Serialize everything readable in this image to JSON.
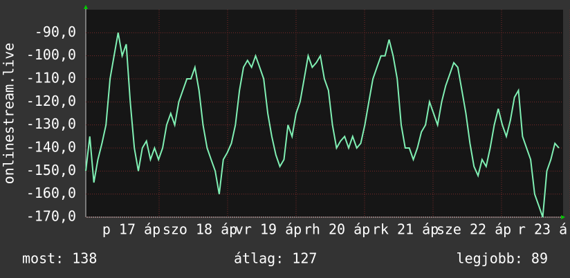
{
  "chart_data": {
    "type": "line",
    "y_label": "onlinestream.live",
    "ylim": [
      -170,
      -80
    ],
    "yticks": [
      {
        "value": -170,
        "label": "-170,0"
      },
      {
        "value": -160,
        "label": "-160,0"
      },
      {
        "value": -150,
        "label": "-150,0"
      },
      {
        "value": -140,
        "label": "-140,0"
      },
      {
        "value": -130,
        "label": "-130,0"
      },
      {
        "value": -120,
        "label": "-120,0"
      },
      {
        "value": -110,
        "label": "-110,0"
      },
      {
        "value": -100,
        "label": "-100,0"
      },
      {
        "value": -90,
        "label": "-90,0"
      }
    ],
    "x_labels": [
      "p 17 áp",
      "szo 18 áp",
      "vr 19 áp",
      "rh 20 áp",
      "rk 21 áp",
      "sze 22 áp",
      "r 23 á"
    ],
    "grid": true,
    "series": [
      {
        "color": "#80f0b4",
        "values": [
          -150,
          -135,
          -155,
          -145,
          -138,
          -130,
          -110,
          -100,
          -90,
          -100,
          -95,
          -120,
          -140,
          -150,
          -140,
          -137,
          -145,
          -140,
          -145,
          -140,
          -130,
          -125,
          -130,
          -120,
          -115,
          -110,
          -110,
          -105,
          -115,
          -130,
          -140,
          -145,
          -150,
          -160,
          -145,
          -142,
          -138,
          -130,
          -115,
          -105,
          -102,
          -105,
          -100,
          -105,
          -110,
          -125,
          -135,
          -143,
          -148,
          -145,
          -130,
          -135,
          -125,
          -120,
          -110,
          -100,
          -105,
          -103,
          -100,
          -110,
          -115,
          -130,
          -140,
          -137,
          -135,
          -140,
          -135,
          -140,
          -138,
          -130,
          -120,
          -110,
          -105,
          -100,
          -100,
          -93,
          -100,
          -110,
          -130,
          -140,
          -140,
          -145,
          -140,
          -133,
          -130,
          -120,
          -125,
          -130,
          -120,
          -113,
          -108,
          -103,
          -105,
          -115,
          -125,
          -138,
          -148,
          -152,
          -145,
          -148,
          -140,
          -130,
          -123,
          -130,
          -135,
          -128,
          -118,
          -115,
          -135,
          -140,
          -145,
          -160,
          -165,
          -170,
          -150,
          -145,
          -138,
          -140
        ]
      }
    ],
    "footer": [
      "most: 138",
      "átlag: 127",
      "legjobb: 89"
    ]
  }
}
